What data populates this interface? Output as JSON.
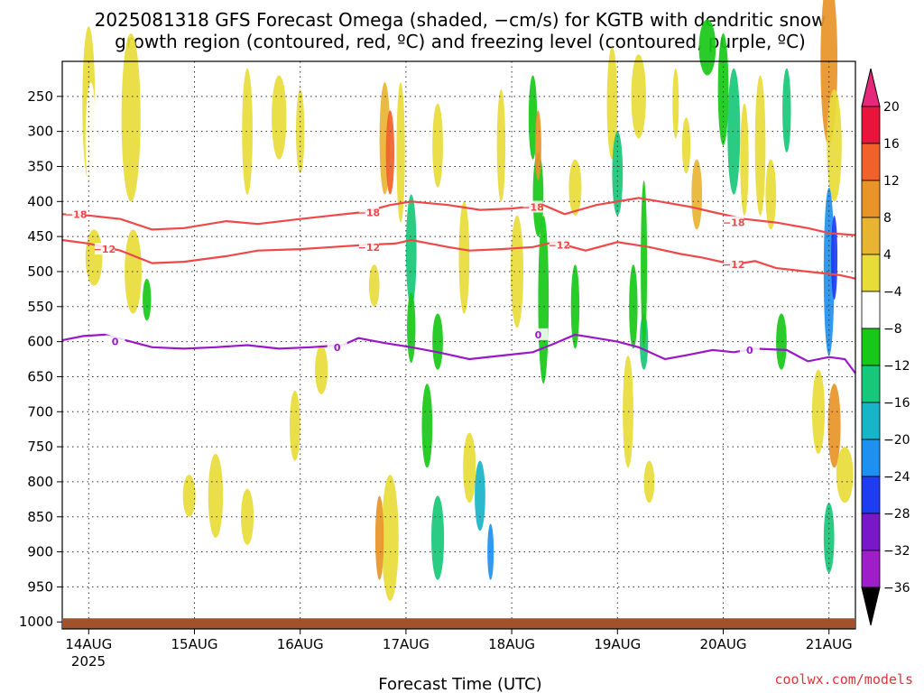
{
  "title_line1": "2025081318 GFS Forecast Omega (shaded, −cm/s) for KGTB with dendritic snow",
  "title_line2": "growth region (contoured, red, ºC) and freezing level (contoured, purple, ºC)",
  "xlabel": "Forecast Time (UTC)",
  "year_label": "2025",
  "credit": "coolwx.com/models",
  "colors": {
    "ground": "#a0522d",
    "dgz": "#f04848",
    "freezing": "#9a18c8"
  },
  "chart_data": {
    "type": "heatmap",
    "x_categories": [
      "14AUG",
      "15AUG",
      "16AUG",
      "17AUG",
      "18AUG",
      "19AUG",
      "20AUG",
      "21AUG"
    ],
    "x_range_days": [
      -0.25,
      7.25
    ],
    "y_levels": [
      250,
      300,
      350,
      400,
      450,
      500,
      550,
      600,
      650,
      700,
      750,
      800,
      850,
      900,
      950,
      1000
    ],
    "y_range_hpa": [
      200,
      1010
    ],
    "grid": true,
    "colorbar": {
      "bounds": [
        20,
        16,
        12,
        8,
        4,
        -4,
        -8,
        -12,
        -16,
        -20,
        -24,
        -28,
        -32,
        -36
      ],
      "labels": [
        "20",
        "16",
        "12",
        "8",
        "4",
        "−4",
        "−8",
        "−12",
        "−16",
        "−20",
        "−24",
        "−28",
        "−32",
        "−36"
      ],
      "colors": [
        "#e8143c",
        "#f0622a",
        "#e89428",
        "#e8b432",
        "#e8dc3a",
        "#ffffff",
        "#18c818",
        "#18c87a",
        "#18b4c8",
        "#1e90f0",
        "#1e3cf0",
        "#7818c8",
        "#a01ec8",
        "#a0a0a0"
      ],
      "top_arrow_color": "#e6287a",
      "bottom_arrow_color": "#000000"
    },
    "contours": [
      {
        "label": "−18",
        "color": "#f04848",
        "points": [
          [
            -0.25,
            418
          ],
          [
            0.0,
            420
          ],
          [
            0.3,
            425
          ],
          [
            0.6,
            440
          ],
          [
            0.9,
            438
          ],
          [
            1.3,
            428
          ],
          [
            1.6,
            432
          ],
          [
            2.0,
            425
          ],
          [
            2.3,
            420
          ],
          [
            2.6,
            415
          ],
          [
            2.85,
            405
          ],
          [
            3.05,
            400
          ],
          [
            3.4,
            405
          ],
          [
            3.7,
            412
          ],
          [
            4.0,
            410
          ],
          [
            4.3,
            405
          ],
          [
            4.5,
            418
          ],
          [
            4.8,
            405
          ],
          [
            5.2,
            395
          ],
          [
            5.4,
            400
          ],
          [
            5.7,
            408
          ],
          [
            5.9,
            415
          ],
          [
            6.2,
            425
          ],
          [
            6.5,
            430
          ],
          [
            6.8,
            438
          ],
          [
            7.0,
            445
          ],
          [
            7.25,
            448
          ]
        ],
        "label_at": [
          [
            -0.12,
            418
          ],
          [
            2.65,
            416
          ],
          [
            4.2,
            408
          ],
          [
            6.1,
            430
          ]
        ]
      },
      {
        "label": "−12",
        "color": "#f04848",
        "points": [
          [
            -0.25,
            455
          ],
          [
            0.0,
            460
          ],
          [
            0.3,
            470
          ],
          [
            0.6,
            488
          ],
          [
            0.9,
            486
          ],
          [
            1.3,
            478
          ],
          [
            1.6,
            470
          ],
          [
            2.0,
            468
          ],
          [
            2.3,
            465
          ],
          [
            2.6,
            462
          ],
          [
            2.9,
            460
          ],
          [
            3.05,
            455
          ],
          [
            3.4,
            465
          ],
          [
            3.6,
            470
          ],
          [
            3.9,
            468
          ],
          [
            4.2,
            465
          ],
          [
            4.4,
            458
          ],
          [
            4.7,
            470
          ],
          [
            5.0,
            458
          ],
          [
            5.3,
            465
          ],
          [
            5.6,
            475
          ],
          [
            5.8,
            480
          ],
          [
            6.1,
            490
          ],
          [
            6.3,
            485
          ],
          [
            6.5,
            495
          ],
          [
            6.8,
            500
          ],
          [
            7.1,
            505
          ],
          [
            7.25,
            510
          ]
        ],
        "label_at": [
          [
            0.15,
            468
          ],
          [
            2.65,
            465
          ],
          [
            4.45,
            462
          ],
          [
            6.1,
            490
          ]
        ]
      },
      {
        "label": "0",
        "color": "#9a18c8",
        "points": [
          [
            -0.25,
            598
          ],
          [
            -0.05,
            592
          ],
          [
            0.15,
            590
          ],
          [
            0.35,
            598
          ],
          [
            0.6,
            608
          ],
          [
            0.9,
            610
          ],
          [
            1.2,
            608
          ],
          [
            1.5,
            605
          ],
          [
            1.8,
            610
          ],
          [
            2.1,
            608
          ],
          [
            2.4,
            605
          ],
          [
            2.55,
            595
          ],
          [
            2.8,
            602
          ],
          [
            3.05,
            608
          ],
          [
            3.3,
            615
          ],
          [
            3.6,
            625
          ],
          [
            3.9,
            620
          ],
          [
            4.2,
            615
          ],
          [
            4.4,
            603
          ],
          [
            4.6,
            590
          ],
          [
            4.8,
            595
          ],
          [
            5.0,
            600
          ],
          [
            5.2,
            608
          ],
          [
            5.45,
            625
          ],
          [
            5.7,
            618
          ],
          [
            5.9,
            612
          ],
          [
            6.1,
            615
          ],
          [
            6.3,
            610
          ],
          [
            6.6,
            612
          ],
          [
            6.8,
            628
          ],
          [
            7.0,
            622
          ],
          [
            7.15,
            625
          ],
          [
            7.25,
            645
          ]
        ],
        "label_at": [
          [
            0.25,
            600
          ],
          [
            2.35,
            608
          ],
          [
            4.25,
            590
          ],
          [
            6.25,
            612
          ]
        ]
      }
    ],
    "ground_level_hpa": 1000
  }
}
